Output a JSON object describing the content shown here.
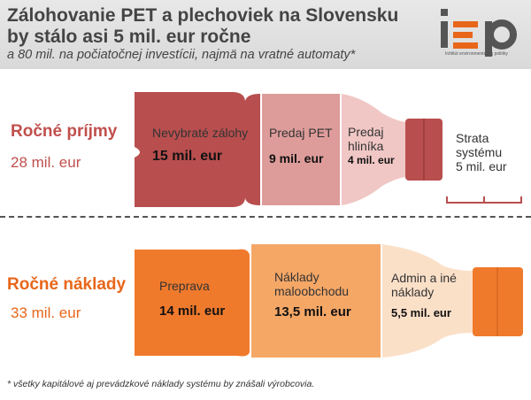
{
  "header": {
    "title": "Zálohovanie PET a plechoviek na Slovensku by stálo asi 5 mil. eur ročne",
    "subtitle": "a 80 mil. na počiatočnej investícii, najmä na vratné automaty*",
    "logo_text": "iep",
    "logo_caption": "Inštitút environmentálnej politiky"
  },
  "revenue": {
    "label": "Ročné príjmy",
    "total": "28 mil. eur",
    "segments": [
      {
        "label": "Nevybraté zálohy",
        "value": "15 mil. eur",
        "amount": 15,
        "color": "#b84e4e"
      },
      {
        "label": "Predaj PET",
        "value": "9 mil. eur",
        "amount": 9,
        "color": "#dd9c9a"
      },
      {
        "label": "Predaj hliníka",
        "value": "4 mil. eur",
        "amount": 4,
        "color": "#f0c7c5"
      }
    ],
    "loss": {
      "label": "Strata systému",
      "value": "5 mil. eur",
      "amount": 5
    }
  },
  "costs": {
    "label": "Ročné náklady",
    "total": "33 mil. eur",
    "segments": [
      {
        "label": "Preprava",
        "value": "14 mil. eur",
        "amount": 14,
        "color": "#f07a2c"
      },
      {
        "label": "Náklady maloobchodu",
        "value": "13,5 mil. eur",
        "amount": 13.5,
        "color": "#f5a766"
      },
      {
        "label": "Admin a iné náklady",
        "value": "5,5 mil. eur",
        "amount": 5.5,
        "color": "#fbe0c8"
      }
    ]
  },
  "colors": {
    "revenue_accent": "#c0504d",
    "cost_accent": "#e8661a",
    "cap_revenue": "#b84e4e",
    "cap_cost": "#f07a2c"
  },
  "footnote": "* všetky kapitálové aj prevádzkové náklady systému by znášali výrobcovia."
}
